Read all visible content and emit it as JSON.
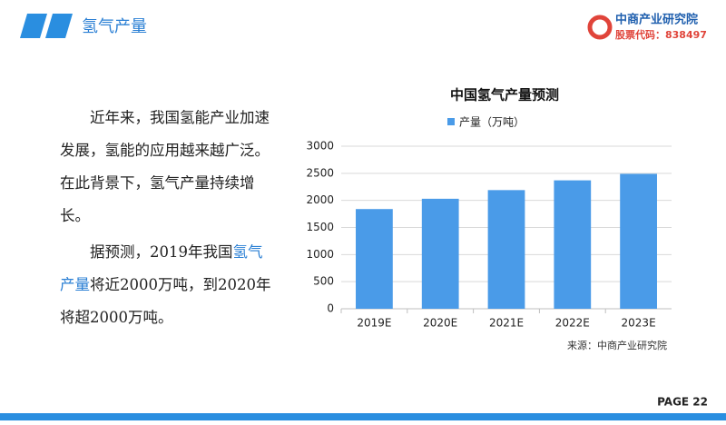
{
  "header": {
    "title": "氢气产量",
    "logo_name": "中商产业研究院",
    "logo_code": "股票代码：838497"
  },
  "body": {
    "paragraph1": "近年来，我国氢能产业加速发展，氢能的应用越来越广泛。在此背景下，氢气产量持续增长。",
    "paragraph2": [
      "据预测，2019年我国",
      "氢气产量",
      "将近2000万吨，到2020年将超2000万吨。"
    ]
  },
  "chart_data": {
    "type": "bar",
    "title": "中国氢气产量预测",
    "categories": [
      "2019E",
      "2020E",
      "2021E",
      "2022E",
      "2023E"
    ],
    "series": [
      {
        "name": "产量（万吨）",
        "color": "#4a9be8",
        "values": [
          1840,
          2030,
          2190,
          2370,
          2490
        ]
      }
    ],
    "ylim": [
      0,
      3000
    ],
    "yticks": [
      0,
      500,
      1000,
      1500,
      2000,
      2500,
      3000
    ],
    "grid": true,
    "legend": "top",
    "source": "来源：中商产业研究院"
  },
  "footer": {
    "page": "PAGE 22"
  }
}
